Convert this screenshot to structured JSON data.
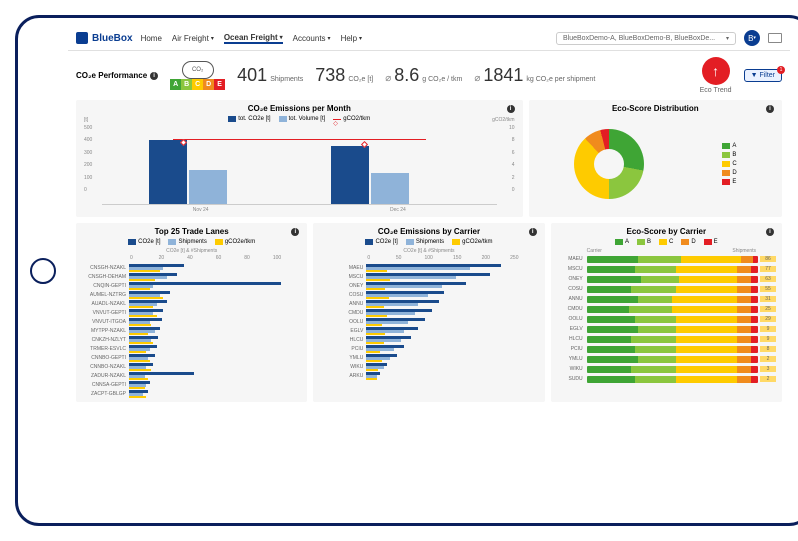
{
  "brand": "BlueBox",
  "nav": {
    "home": "Home",
    "air": "Air Freight",
    "ocean": "Ocean Freight",
    "accounts": "Accounts",
    "help": "Help"
  },
  "account_selector": "BlueBoxDemo-A, BlueBoxDemo-B, BlueBoxDe...",
  "avatar_initial": "B",
  "perf_title": "CO₂e Performance",
  "cloud_label": "CO₂",
  "score_letters": [
    "A",
    "B",
    "C",
    "D",
    "E"
  ],
  "score_colors": [
    "#3fa535",
    "#8bc63e",
    "#fecb00",
    "#f08b1d",
    "#e31e24"
  ],
  "metrics": {
    "shipments_val": "401",
    "shipments_lbl": "Shipments",
    "co2_val": "738",
    "co2_lbl": "CO₂e [t]",
    "gtkm_val": "8.6",
    "gtkm_lbl": "g CO₂e / tkm",
    "pership_val": "1841",
    "pership_lbl": "kg CO₂e per shipment"
  },
  "eco_trend_label": "Eco Trend",
  "filter_label": "Filter",
  "filter_count": "1",
  "month_chart": {
    "title": "CO₂e Emissions per Month",
    "legend": [
      {
        "label": "tot. CO2e [t]",
        "color": "#1a4b8c"
      },
      {
        "label": "tot. Volume [t]",
        "color": "#8fb3d9"
      },
      {
        "label": "gCO2/tkm",
        "color": "#e31e24",
        "line": true
      }
    ],
    "y_left_label": "[t]",
    "y_right_label": "gCO2/tkm",
    "y_left_ticks": [
      "500",
      "400",
      "300",
      "200",
      "100",
      "0"
    ],
    "y_right_ticks": [
      "10",
      "8",
      "6",
      "4",
      "2",
      "0"
    ],
    "x_labels": [
      "Nov 24",
      "Dec 24"
    ],
    "groups": [
      {
        "x": 12,
        "co2": 85,
        "vol": 45,
        "line_y": 18
      },
      {
        "x": 58,
        "co2": 78,
        "vol": 42,
        "line_y": 20
      }
    ]
  },
  "donut": {
    "title": "Eco-Score Distribution",
    "segments": [
      {
        "label": "A",
        "color": "#3fa535",
        "pct": 28
      },
      {
        "label": "B",
        "color": "#8bc63e",
        "pct": 22
      },
      {
        "label": "C",
        "color": "#fecb00",
        "pct": 38
      },
      {
        "label": "D",
        "color": "#f08b1d",
        "pct": 8
      },
      {
        "label": "E",
        "color": "#e31e24",
        "pct": 4
      }
    ]
  },
  "trade_lanes": {
    "title": "Top 25 Trade Lanes",
    "legend": [
      {
        "label": "CO2e [t]",
        "color": "#1a4b8c"
      },
      {
        "label": "Shipments",
        "color": "#8fb3d9"
      },
      {
        "label": "gCO2e/tkm",
        "color": "#fecb00"
      }
    ],
    "axis_title": "CO2e [t] & #Shipments",
    "xticks": [
      "0",
      "20",
      "40",
      "60",
      "80",
      "100"
    ],
    "rows": [
      {
        "l": "CNSGH-NZAKL",
        "a": 32,
        "b": 20,
        "c": 18
      },
      {
        "l": "CNSGH-DEHAM",
        "a": 28,
        "b": 22,
        "c": 15
      },
      {
        "l": "CNQIN-GEPTI",
        "a": 88,
        "b": 14,
        "c": 12
      },
      {
        "l": "AUMEL-NZTRG",
        "a": 24,
        "b": 18,
        "c": 20
      },
      {
        "l": "AUADL-NZAKL",
        "a": 22,
        "b": 16,
        "c": 14
      },
      {
        "l": "VNVUT-GEPTI",
        "a": 20,
        "b": 14,
        "c": 16
      },
      {
        "l": "VNVUT-ITGOA",
        "a": 19,
        "b": 12,
        "c": 13
      },
      {
        "l": "MYTPP-NZAKL",
        "a": 18,
        "b": 15,
        "c": 11
      },
      {
        "l": "CNKZH-NZLYT",
        "a": 17,
        "b": 13,
        "c": 14
      },
      {
        "l": "TRMER-ESVLC",
        "a": 16,
        "b": 12,
        "c": 10
      },
      {
        "l": "CNNBO-GEPTI",
        "a": 15,
        "b": 11,
        "c": 12
      },
      {
        "l": "CNNBO-NZAKL",
        "a": 14,
        "b": 10,
        "c": 13
      },
      {
        "l": "ZADUR-NZAKL",
        "a": 38,
        "b": 9,
        "c": 11
      },
      {
        "l": "CNNSA-GEPTI",
        "a": 12,
        "b": 10,
        "c": 9
      },
      {
        "l": "ZACPT-GBLGP",
        "a": 11,
        "b": 8,
        "c": 10
      }
    ]
  },
  "by_carrier": {
    "title": "CO₂e Emissions by Carrier",
    "legend": [
      {
        "label": "CO2e [t]",
        "color": "#1a4b8c"
      },
      {
        "label": "Shipments",
        "color": "#8fb3d9"
      },
      {
        "label": "gCO2e/tkm",
        "color": "#fecb00"
      }
    ],
    "axis_title": "CO2e [t] & #Shipments",
    "xticks": [
      "0",
      "50",
      "100",
      "150",
      "200",
      "250"
    ],
    "rows": [
      {
        "l": "MAEU",
        "a": 78,
        "b": 60,
        "c": 12
      },
      {
        "l": "MSCU",
        "a": 72,
        "b": 52,
        "c": 14
      },
      {
        "l": "ONEY",
        "a": 58,
        "b": 44,
        "c": 11
      },
      {
        "l": "COSU",
        "a": 45,
        "b": 36,
        "c": 13
      },
      {
        "l": "ANNU",
        "a": 42,
        "b": 30,
        "c": 10
      },
      {
        "l": "CMDU",
        "a": 38,
        "b": 28,
        "c": 12
      },
      {
        "l": "OOLU",
        "a": 34,
        "b": 24,
        "c": 9
      },
      {
        "l": "EGLV",
        "a": 30,
        "b": 22,
        "c": 11
      },
      {
        "l": "HLCU",
        "a": 26,
        "b": 20,
        "c": 10
      },
      {
        "l": "PCIU",
        "a": 22,
        "b": 16,
        "c": 8
      },
      {
        "l": "YMLU",
        "a": 18,
        "b": 14,
        "c": 9
      },
      {
        "l": "WIKU",
        "a": 12,
        "b": 10,
        "c": 7
      },
      {
        "l": "ARKU",
        "a": 8,
        "b": 6,
        "c": 6
      }
    ]
  },
  "eco_carrier": {
    "title": "Eco-Score by Carrier",
    "legend_labels": [
      "A",
      "B",
      "C",
      "D",
      "E"
    ],
    "col_left": "Carrier",
    "col_right": "Shipments",
    "rows": [
      {
        "l": "MAEU",
        "segs": [
          30,
          25,
          35,
          7,
          3
        ],
        "v": 86
      },
      {
        "l": "MSCU",
        "segs": [
          28,
          24,
          36,
          8,
          4
        ],
        "v": 77
      },
      {
        "l": "ONEY",
        "segs": [
          32,
          22,
          34,
          8,
          4
        ],
        "v": 63
      },
      {
        "l": "COSU",
        "segs": [
          26,
          26,
          36,
          8,
          4
        ],
        "v": 55
      },
      {
        "l": "ANNU",
        "segs": [
          30,
          20,
          38,
          8,
          4
        ],
        "v": 31
      },
      {
        "l": "CMDU",
        "segs": [
          25,
          25,
          38,
          8,
          4
        ],
        "v": 25
      },
      {
        "l": "OOLU",
        "segs": [
          28,
          24,
          36,
          8,
          4
        ],
        "v": 29
      },
      {
        "l": "EGLV",
        "segs": [
          30,
          22,
          36,
          8,
          4
        ],
        "v": 9
      },
      {
        "l": "HLCU",
        "segs": [
          26,
          26,
          36,
          8,
          4
        ],
        "v": 9
      },
      {
        "l": "PCIU",
        "segs": [
          28,
          24,
          36,
          8,
          4
        ],
        "v": 8
      },
      {
        "l": "YMLU",
        "segs": [
          30,
          22,
          36,
          8,
          4
        ],
        "v": 2
      },
      {
        "l": "WIKU",
        "segs": [
          26,
          26,
          36,
          8,
          4
        ],
        "v": 3
      },
      {
        "l": "SUDU",
        "segs": [
          28,
          24,
          36,
          8,
          4
        ],
        "v": 2
      }
    ]
  },
  "colors": {
    "navy": "#1a4b8c",
    "lblue": "#8fb3d9",
    "yellow": "#fecb00",
    "red": "#e31e24"
  }
}
